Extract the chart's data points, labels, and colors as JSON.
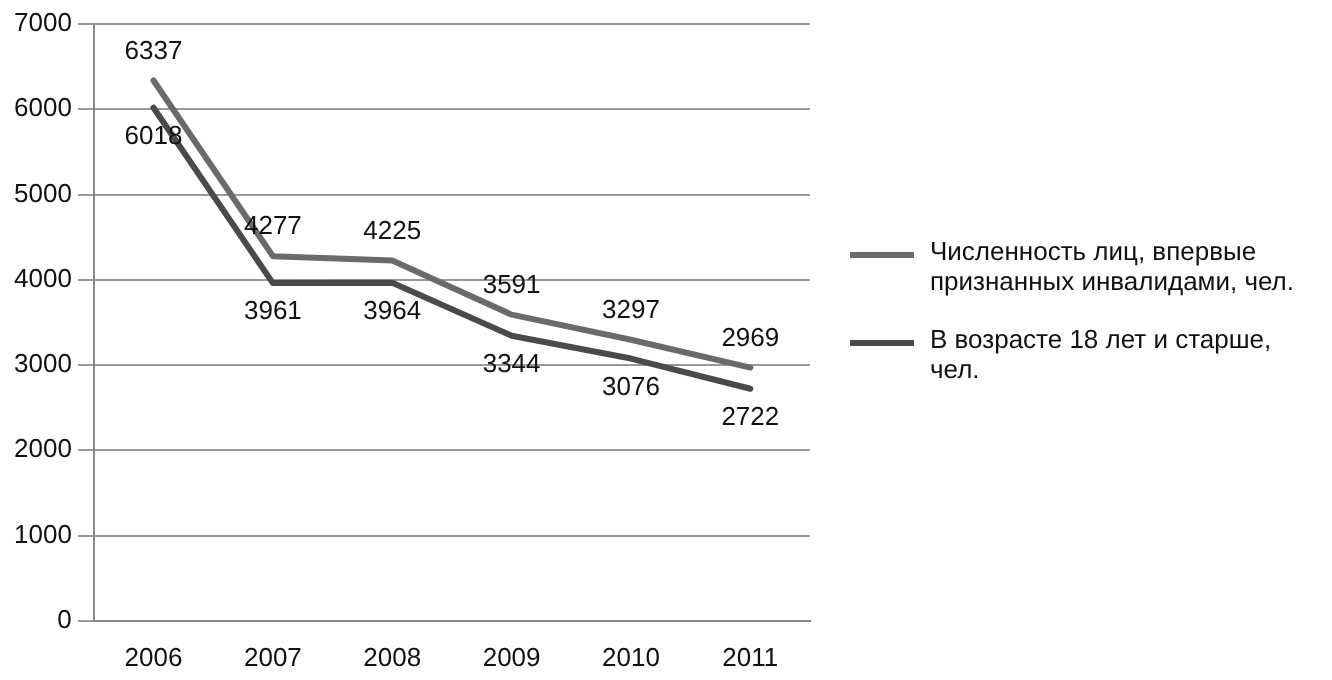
{
  "chart_data": {
    "type": "line",
    "categories": [
      "2006",
      "2007",
      "2008",
      "2009",
      "2010",
      "2011"
    ],
    "series": [
      {
        "name": "Численность лиц, впервые признанных инвалидами, чел.",
        "color": "#6a6a6a",
        "values": [
          6337,
          4277,
          4225,
          3591,
          3297,
          2969
        ]
      },
      {
        "name": "В возрасте 18 лет и старше, чел.",
        "color": "#4a4a4a",
        "values": [
          6018,
          3961,
          3964,
          3344,
          3076,
          2722
        ]
      }
    ],
    "ylim": [
      0,
      7000
    ],
    "yticks": [
      0,
      1000,
      2000,
      3000,
      4000,
      5000,
      6000,
      7000
    ],
    "grid": "y",
    "legend": "right",
    "marker": "none",
    "line_style": "solid",
    "data_labels": true
  }
}
